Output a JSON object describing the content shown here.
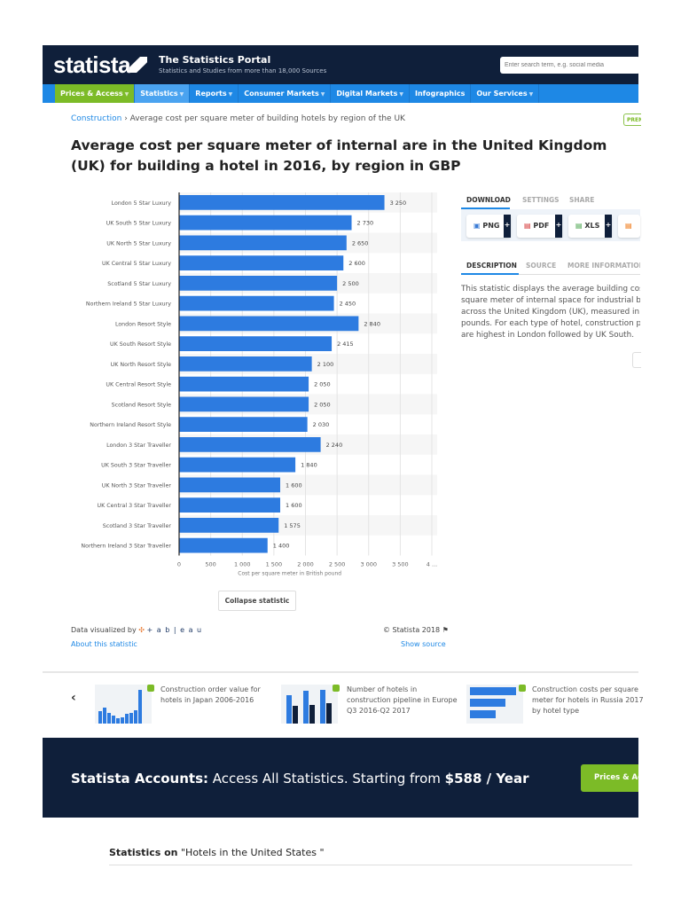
{
  "header": {
    "logo": "statista",
    "portal_title": "The Statistics Portal",
    "portal_subtitle": "Statistics and Studies from more than 18,000 Sources",
    "search_placeholder": "Enter search term, e.g. social media"
  },
  "nav": [
    {
      "label": "Prices & Access",
      "caret": true
    },
    {
      "label": "Statistics",
      "caret": true
    },
    {
      "label": "Reports",
      "caret": true
    },
    {
      "label": "Consumer Markets",
      "caret": true
    },
    {
      "label": "Digital Markets",
      "caret": true
    },
    {
      "label": "Infographics",
      "caret": false
    },
    {
      "label": "Our Services",
      "caret": true
    }
  ],
  "breadcrumb": {
    "parent": "Construction",
    "separator": "›",
    "current": "Average cost per square meter of building hotels by region of the UK"
  },
  "premium_badge": "PREMIUM",
  "page_title": "Average cost per square meter of internal are in the United Kingdom (UK) for building a hotel in 2016, by region in GBP",
  "chart_data": {
    "type": "bar",
    "orientation": "horizontal",
    "categories": [
      "London 5 Star Luxury",
      "UK South 5 Star Luxury",
      "UK North 5 Star Luxury",
      "UK Central 5 Star Luxury",
      "Scotland 5 Star Luxury",
      "Northern Ireland 5 Star Luxury",
      "London Resort Style",
      "UK South Resort Style",
      "UK North Resort Style",
      "UK Central Resort Style",
      "Scotland Resort Style",
      "Northern Ireland Resort Style",
      "London 3 Star Traveller",
      "UK South 3 Star Traveller",
      "UK North 3 Star Traveller",
      "UK Central 3 Star Traveller",
      "Scotland 3 Star Traveller",
      "Northern Ireland 3 Star Traveller"
    ],
    "values": [
      3250,
      2730,
      2650,
      2600,
      2500,
      2450,
      2840,
      2415,
      2100,
      2050,
      2050,
      2030,
      2240,
      1840,
      1600,
      1600,
      1575,
      1400
    ],
    "value_labels": [
      "3 250",
      "2 730",
      "2 650",
      "2 600",
      "2 500",
      "2 450",
      "2 840",
      "2 415",
      "2 100",
      "2 050",
      "2 050",
      "2 030",
      "2 240",
      "1 840",
      "1 600",
      "1 600",
      "1 575",
      "1 400"
    ],
    "xlabel": "Cost per square meter in British pound",
    "xticks": [
      "0",
      "500",
      "1 000",
      "1 500",
      "2 000",
      "2 500",
      "3 000",
      "3 500",
      "4 ..."
    ],
    "xtick_values": [
      0,
      500,
      1000,
      1500,
      2000,
      2500,
      3000,
      3500,
      4000
    ],
    "xlim": [
      0,
      4000
    ],
    "bar_color": "#2d7be0",
    "grid": true
  },
  "side": {
    "tabs": [
      "DOWNLOAD",
      "SETTINGS",
      "SHARE"
    ],
    "downloads": [
      "PNG",
      "PDF",
      "XLS"
    ],
    "plus": "+",
    "desc_tabs": [
      "DESCRIPTION",
      "SOURCE",
      "MORE INFORMATION"
    ],
    "description": [
      "This statistic displays the average building cost per",
      "square meter of internal space for industrial buildings",
      "across the United Kingdom (UK), measured in British",
      "pounds. For each type of hotel, construction prices",
      "are highest in London followed by UK South."
    ]
  },
  "collapse_label": "Collapse statistic",
  "footer": {
    "data_visualized_by": "Data visualized by",
    "tableau": "+ a b | e a u",
    "copyright": "© Statista 2018",
    "about": "About this statistic",
    "show_source": "Show source"
  },
  "related": [
    {
      "title": "Construction order value for hotels in Japan 2006-2016"
    },
    {
      "title": "Number of hotels in construction pipeline in Europe Q3 2016-Q2 2017"
    },
    {
      "title": "Construction costs per square meter for hotels in Russia 2017 by hotel type"
    }
  ],
  "related_prev": "‹",
  "banner": {
    "bold": "Statista Accounts:",
    "text": " Access All Statistics. Starting from ",
    "price": "$588 / Year",
    "button": "Prices & Access"
  },
  "statistics_on": {
    "bold": "Statistics on",
    "text": " \"Hotels in the United States \""
  }
}
